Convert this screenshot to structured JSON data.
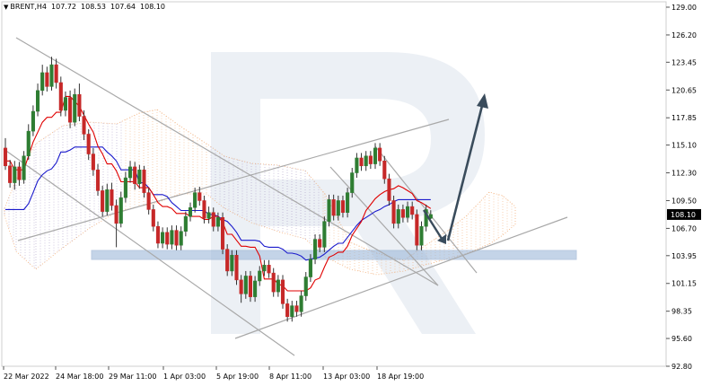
{
  "header": {
    "symbol": "BRENT,H4",
    "open": "107.72",
    "high": "108.53",
    "low": "107.64",
    "close": "108.10"
  },
  "chart_data": {
    "type": "candlestick",
    "y_ticks": [
      "129.00",
      "126.20",
      "123.45",
      "120.65",
      "117.85",
      "115.10",
      "112.30",
      "109.50",
      "106.70",
      "103.95",
      "101.15",
      "98.35",
      "95.60",
      "92.80"
    ],
    "ylim": [
      92.8,
      129.0
    ],
    "x_ticks": [
      "22 Mar 2022",
      "24 Mar 18:00",
      "29 Mar 11:00",
      "1 Apr 03:00",
      "5 Apr 19:00",
      "8 Apr 11:00",
      "13 Apr 03:00",
      "18 Apr 19:00"
    ],
    "current_price": "108.10",
    "colors": {
      "bull": "#2e7d32",
      "bear": "#c62828",
      "fast_line": "#e00000",
      "slow_line": "#1a1acc",
      "cloud": "#f0a060",
      "cloud_alt": "#9988bb",
      "channel": "#a8a8a8",
      "support_band": "#9db9d9",
      "arrow": "#3a4c5c",
      "watermark": "#dde3ec"
    },
    "candles": [
      [
        114.8,
        113.0,
        115.8,
        112.6
      ],
      [
        113.0,
        111.3,
        113.6,
        110.8
      ],
      [
        111.3,
        112.9,
        113.5,
        110.6
      ],
      [
        112.9,
        111.6,
        113.4,
        111.0
      ],
      [
        111.6,
        114.0,
        114.5,
        111.2
      ],
      [
        114.0,
        116.5,
        117.2,
        113.6
      ],
      [
        116.5,
        118.5,
        119.1,
        116.0
      ],
      [
        118.5,
        120.6,
        121.3,
        118.0
      ],
      [
        120.6,
        122.4,
        123.2,
        120.1
      ],
      [
        122.4,
        121.0,
        123.0,
        120.5
      ],
      [
        121.0,
        123.2,
        124.0,
        120.6
      ],
      [
        123.2,
        121.4,
        123.8,
        120.8
      ],
      [
        121.4,
        118.6,
        122.0,
        118.0
      ],
      [
        118.6,
        119.9,
        120.5,
        118.0
      ],
      [
        119.9,
        117.4,
        120.6,
        116.8
      ],
      [
        117.4,
        120.2,
        120.8,
        117.0
      ],
      [
        120.2,
        118.0,
        121.3,
        117.5
      ],
      [
        118.0,
        116.2,
        118.6,
        115.6
      ],
      [
        116.2,
        114.2,
        116.7,
        113.6
      ],
      [
        114.2,
        112.6,
        114.8,
        112.0
      ],
      [
        112.6,
        110.5,
        113.2,
        110.0
      ],
      [
        110.5,
        108.4,
        111.0,
        107.9
      ],
      [
        108.4,
        110.6,
        111.2,
        108.0
      ],
      [
        110.6,
        109.0,
        111.3,
        108.5
      ],
      [
        109.0,
        107.2,
        109.6,
        104.8
      ],
      [
        107.2,
        109.8,
        110.4,
        106.8
      ],
      [
        109.8,
        111.8,
        112.4,
        109.3
      ],
      [
        111.8,
        112.9,
        113.5,
        111.3
      ],
      [
        112.9,
        111.2,
        113.4,
        110.6
      ],
      [
        111.2,
        112.6,
        113.1,
        110.7
      ],
      [
        112.6,
        110.3,
        113.0,
        109.8
      ],
      [
        110.3,
        108.6,
        110.8,
        108.1
      ],
      [
        108.6,
        106.9,
        109.1,
        106.4
      ],
      [
        106.9,
        105.2,
        107.4,
        104.7
      ],
      [
        105.2,
        106.3,
        106.8,
        104.7
      ],
      [
        106.3,
        105.1,
        106.8,
        104.6
      ],
      [
        105.1,
        106.5,
        107.0,
        104.6
      ],
      [
        106.5,
        105.0,
        107.0,
        104.5
      ],
      [
        105.0,
        106.4,
        106.9,
        104.5
      ],
      [
        106.4,
        107.9,
        108.4,
        105.9
      ],
      [
        107.9,
        108.8,
        109.3,
        107.4
      ],
      [
        108.8,
        110.3,
        110.8,
        108.3
      ],
      [
        110.3,
        109.5,
        110.9,
        109.0
      ],
      [
        109.5,
        107.7,
        110.0,
        107.2
      ],
      [
        107.7,
        108.3,
        108.9,
        107.2
      ],
      [
        108.3,
        106.9,
        108.8,
        106.4
      ],
      [
        106.9,
        107.8,
        108.3,
        106.4
      ],
      [
        107.8,
        104.6,
        108.3,
        104.1
      ],
      [
        104.6,
        102.4,
        105.1,
        101.9
      ],
      [
        102.4,
        104.0,
        104.5,
        101.9
      ],
      [
        104.0,
        101.5,
        104.5,
        101.0
      ],
      [
        101.5,
        100.1,
        102.0,
        99.2
      ],
      [
        100.1,
        101.9,
        102.4,
        99.6
      ],
      [
        101.9,
        99.8,
        102.4,
        99.3
      ],
      [
        99.8,
        101.4,
        101.9,
        99.3
      ],
      [
        101.4,
        102.4,
        102.9,
        100.9
      ],
      [
        102.4,
        103.0,
        103.5,
        101.9
      ],
      [
        103.0,
        102.2,
        103.5,
        101.7
      ],
      [
        102.2,
        100.3,
        102.7,
        99.8
      ],
      [
        100.3,
        101.5,
        102.0,
        99.8
      ],
      [
        101.5,
        99.1,
        102.0,
        98.6
      ],
      [
        99.1,
        97.8,
        99.6,
        97.3
      ],
      [
        97.8,
        98.9,
        99.4,
        97.3
      ],
      [
        98.9,
        98.3,
        99.4,
        97.8
      ],
      [
        98.3,
        99.9,
        100.4,
        97.8
      ],
      [
        99.9,
        101.8,
        102.3,
        99.4
      ],
      [
        101.8,
        103.6,
        104.1,
        101.3
      ],
      [
        103.6,
        105.6,
        106.1,
        103.1
      ],
      [
        105.6,
        104.8,
        106.1,
        104.3
      ],
      [
        104.8,
        107.4,
        107.9,
        104.3
      ],
      [
        107.4,
        109.6,
        110.1,
        106.9
      ],
      [
        109.6,
        108.0,
        110.1,
        107.5
      ],
      [
        108.0,
        109.5,
        110.0,
        107.5
      ],
      [
        109.5,
        108.3,
        110.0,
        107.8
      ],
      [
        108.3,
        110.3,
        110.8,
        107.8
      ],
      [
        110.3,
        112.3,
        112.8,
        109.8
      ],
      [
        112.3,
        113.8,
        114.3,
        111.8
      ],
      [
        113.8,
        113.0,
        114.3,
        112.5
      ],
      [
        113.0,
        114.0,
        114.5,
        112.5
      ],
      [
        114.0,
        113.2,
        114.5,
        112.7
      ],
      [
        113.2,
        114.8,
        115.3,
        112.7
      ],
      [
        114.8,
        113.5,
        115.3,
        113.0
      ],
      [
        113.5,
        111.7,
        114.0,
        111.2
      ],
      [
        111.7,
        109.5,
        112.2,
        109.0
      ],
      [
        109.5,
        107.2,
        110.0,
        106.7
      ],
      [
        107.2,
        108.6,
        109.1,
        106.7
      ],
      [
        108.6,
        107.8,
        109.1,
        107.3
      ],
      [
        107.8,
        108.9,
        109.4,
        107.3
      ],
      [
        108.9,
        108.1,
        109.4,
        107.6
      ],
      [
        108.1,
        105.0,
        108.6,
        104.5
      ],
      [
        105.0,
        106.9,
        107.4,
        104.5
      ],
      [
        106.9,
        108.6,
        109.1,
        106.4
      ],
      [
        107.72,
        108.1,
        108.53,
        107.64
      ]
    ],
    "fast_line": [
      113.5,
      113.5,
      112.6,
      112.6,
      112.6,
      114.0,
      115.4,
      116.4,
      117.4,
      117.9,
      117.9,
      118.4,
      118.4,
      120.0,
      120.0,
      119.5,
      119.0,
      118.1,
      117.2,
      116.4,
      115.0,
      114.2,
      113.2,
      113.2,
      112.5,
      111.4,
      111.4,
      111.4,
      111.4,
      110.8,
      110.8,
      110.8,
      110.1,
      109.3,
      108.9,
      108.9,
      108.7,
      108.2,
      108.2,
      108.2,
      107.9,
      107.9,
      107.9,
      107.6,
      107.6,
      107.9,
      107.9,
      107.3,
      106.1,
      106.1,
      105.5,
      104.9,
      104.9,
      104.8,
      104.8,
      103.9,
      101.6,
      101.6,
      101.6,
      101.1,
      100.9,
      100.4,
      100.4,
      100.4,
      100.4,
      100.4,
      100.7,
      101.5,
      101.7,
      102.8,
      103.8,
      104.0,
      104.3,
      104.3,
      104.9,
      106.0,
      106.7,
      107.4,
      108.5,
      109.1,
      109.7,
      110.1,
      110.4,
      110.6,
      110.7,
      111.0,
      110.8,
      110.5,
      110.2,
      109.5,
      109.3,
      109.0,
      108.7
    ],
    "slow_line": [
      108.6,
      108.6,
      108.6,
      108.6,
      108.6,
      109.2,
      110.3,
      111.5,
      112.1,
      112.5,
      112.7,
      113.3,
      114.4,
      114.4,
      114.6,
      114.9,
      114.9,
      114.9,
      114.9,
      114.9,
      114.9,
      114.9,
      114.4,
      114.0,
      113.5,
      112.6,
      112.6,
      112.6,
      112.6,
      111.3,
      111.3,
      110.8,
      110.1,
      110.1,
      110.1,
      109.9,
      109.3,
      108.9,
      108.5,
      108.5,
      108.5,
      108.5,
      108.5,
      108.5,
      108.1,
      108.1,
      107.9,
      107.6,
      107.4,
      106.9,
      106.3,
      105.5,
      105.5,
      105.5,
      105.5,
      105.4,
      104.9,
      104.8,
      104.8,
      104.8,
      104.6,
      104.2,
      104.2,
      104.1,
      103.9,
      103.5,
      103.6,
      103.7,
      103.8,
      104.1,
      104.5,
      104.9,
      105.2,
      105.2,
      105.8,
      106.4,
      107.0,
      107.5,
      107.8,
      108.1,
      108.4,
      108.6,
      108.9,
      109.1,
      109.4,
      109.6,
      109.6,
      109.6,
      109.6,
      109.6,
      109.6,
      109.6,
      109.6
    ]
  }
}
